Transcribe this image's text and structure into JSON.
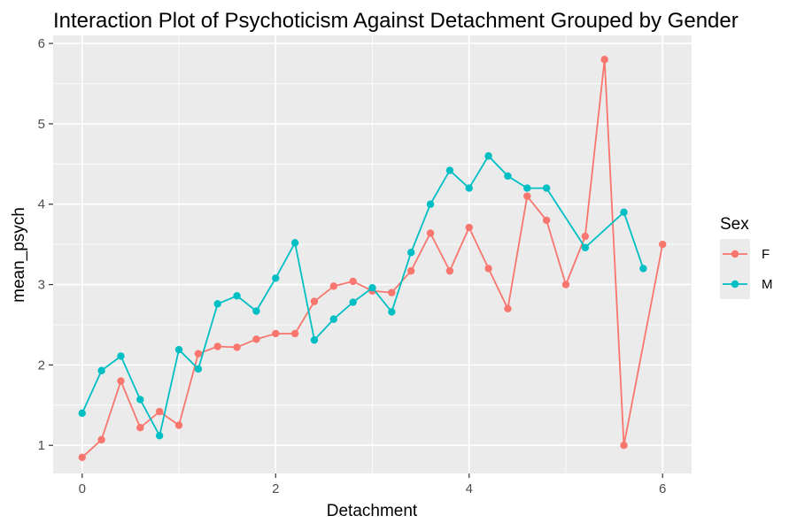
{
  "chart_data": {
    "type": "line",
    "title": "Interaction Plot of Psychoticism Against Detachment Grouped by Gender",
    "xlabel": "Detachment",
    "ylabel": "mean_psych",
    "xlim": [
      -0.3,
      6.3
    ],
    "ylim": [
      0.65,
      6.1
    ],
    "x_ticks": [
      0,
      2,
      4,
      6
    ],
    "y_ticks": [
      1,
      2,
      3,
      4,
      5,
      6
    ],
    "x_tick_labels": [
      "0",
      "2",
      "4",
      "6"
    ],
    "y_tick_labels": [
      "1",
      "2",
      "3",
      "4",
      "5",
      "6"
    ],
    "grid": true,
    "legend": {
      "title": "Sex",
      "position": "right"
    },
    "series": [
      {
        "name": "F",
        "color": "#F8766D",
        "points": [
          [
            0,
            0.85
          ],
          [
            0.2,
            1.07
          ],
          [
            0.4,
            1.8
          ],
          [
            0.6,
            1.22
          ],
          [
            0.8,
            1.42
          ],
          [
            1.0,
            1.25
          ],
          [
            1.2,
            2.14
          ],
          [
            1.4,
            2.23
          ],
          [
            1.6,
            2.22
          ],
          [
            1.8,
            2.32
          ],
          [
            2.0,
            2.39
          ],
          [
            2.2,
            2.39
          ],
          [
            2.4,
            2.79
          ],
          [
            2.6,
            2.98
          ],
          [
            2.8,
            3.04
          ],
          [
            3.0,
            2.92
          ],
          [
            3.2,
            2.9
          ],
          [
            3.4,
            3.17
          ],
          [
            3.6,
            3.64
          ],
          [
            3.8,
            3.17
          ],
          [
            4.0,
            3.71
          ],
          [
            4.2,
            3.2
          ],
          [
            4.4,
            2.7
          ],
          [
            4.6,
            4.1
          ],
          [
            4.8,
            3.8
          ],
          [
            5.0,
            3.0
          ],
          [
            5.2,
            3.6
          ],
          [
            5.4,
            5.8
          ],
          [
            5.6,
            1.0
          ],
          [
            6.0,
            3.5
          ]
        ]
      },
      {
        "name": "M",
        "color": "#00BFC4",
        "points": [
          [
            0,
            1.4
          ],
          [
            0.2,
            1.93
          ],
          [
            0.4,
            2.11
          ],
          [
            0.6,
            1.57
          ],
          [
            0.8,
            1.12
          ],
          [
            1.0,
            2.19
          ],
          [
            1.2,
            1.95
          ],
          [
            1.4,
            2.76
          ],
          [
            1.6,
            2.86
          ],
          [
            1.8,
            2.67
          ],
          [
            2.0,
            3.08
          ],
          [
            2.2,
            3.52
          ],
          [
            2.4,
            2.31
          ],
          [
            2.6,
            2.57
          ],
          [
            2.8,
            2.78
          ],
          [
            3.0,
            2.96
          ],
          [
            3.2,
            2.66
          ],
          [
            3.4,
            3.4
          ],
          [
            3.6,
            4.0
          ],
          [
            3.8,
            4.42
          ],
          [
            4.0,
            4.2
          ],
          [
            4.2,
            4.6
          ],
          [
            4.4,
            4.35
          ],
          [
            4.6,
            4.2
          ],
          [
            4.8,
            4.2
          ],
          [
            5.2,
            3.46
          ],
          [
            5.6,
            3.9
          ],
          [
            5.8,
            3.2
          ]
        ]
      }
    ]
  }
}
